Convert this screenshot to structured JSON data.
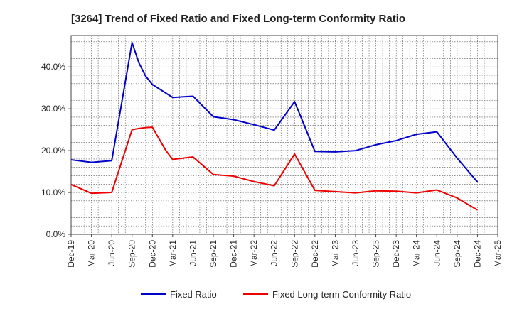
{
  "chart_data": {
    "type": "line",
    "title": "[3264]  Trend of Fixed Ratio and Fixed Long-term Conformity Ratio",
    "xlabel": "",
    "ylabel": "",
    "x_tick_labels": [
      "Dec-19",
      "Mar-20",
      "Jun-20",
      "Sep-20",
      "Dec-20",
      "Mar-21",
      "Jun-21",
      "Sep-21",
      "Dec-21",
      "Mar-22",
      "Jun-22",
      "Sep-22",
      "Dec-22",
      "Mar-23",
      "Jun-23",
      "Sep-23",
      "Dec-23",
      "Mar-24",
      "Jun-24",
      "Sep-24",
      "Dec-24",
      "Mar-25"
    ],
    "y_tick_labels": [
      "0.0%",
      "10.0%",
      "20.0%",
      "30.0%",
      "40.0%"
    ],
    "y_ticks": [
      0,
      10,
      20,
      30,
      40
    ],
    "ylim": [
      0,
      47.5
    ],
    "grid": true,
    "legend_position": "bottom",
    "series": [
      {
        "name": "Fixed Ratio",
        "color": "#0000cc",
        "points": [
          [
            "Dec-19",
            17.8
          ],
          [
            "Mar-20",
            17.2
          ],
          [
            "Jun-20",
            17.6
          ],
          [
            "Sep-20",
            45.8
          ],
          [
            "Oct-20",
            41.0
          ],
          [
            "Nov-20",
            37.8
          ],
          [
            "Dec-20",
            35.8
          ],
          [
            "Mar-21",
            32.7
          ],
          [
            "Jun-21",
            33.0
          ],
          [
            "Sep-21",
            28.1
          ],
          [
            "Dec-21",
            27.4
          ],
          [
            "Mar-22",
            26.2
          ],
          [
            "Jun-22",
            24.9
          ],
          [
            "Sep-22",
            31.7
          ],
          [
            "Dec-22",
            19.8
          ],
          [
            "Mar-23",
            19.7
          ],
          [
            "Jun-23",
            20.0
          ],
          [
            "Sep-23",
            21.4
          ],
          [
            "Dec-23",
            22.4
          ],
          [
            "Mar-24",
            23.9
          ],
          [
            "Jun-24",
            24.5
          ],
          [
            "Sep-24",
            18.2
          ],
          [
            "Dec-24",
            12.5
          ]
        ]
      },
      {
        "name": "Fixed Long-term Conformity Ratio",
        "color": "#ee0000",
        "points": [
          [
            "Dec-19",
            11.9
          ],
          [
            "Mar-20",
            9.8
          ],
          [
            "Jun-20",
            10.0
          ],
          [
            "Sep-20",
            25.0
          ],
          [
            "Oct-20",
            25.3
          ],
          [
            "Nov-20",
            25.5
          ],
          [
            "Dec-20",
            25.6
          ],
          [
            "Jan-21",
            22.8
          ],
          [
            "Feb-21",
            20.0
          ],
          [
            "Mar-21",
            17.9
          ],
          [
            "Jun-21",
            18.5
          ],
          [
            "Sep-21",
            14.3
          ],
          [
            "Dec-21",
            13.9
          ],
          [
            "Mar-22",
            12.6
          ],
          [
            "Jun-22",
            11.6
          ],
          [
            "Sep-22",
            19.2
          ],
          [
            "Dec-22",
            10.5
          ],
          [
            "Mar-23",
            10.2
          ],
          [
            "Jun-23",
            9.9
          ],
          [
            "Sep-23",
            10.4
          ],
          [
            "Dec-23",
            10.3
          ],
          [
            "Mar-24",
            9.9
          ],
          [
            "Jun-24",
            10.6
          ],
          [
            "Sep-24",
            8.7
          ],
          [
            "Dec-24",
            5.8
          ]
        ]
      }
    ]
  }
}
